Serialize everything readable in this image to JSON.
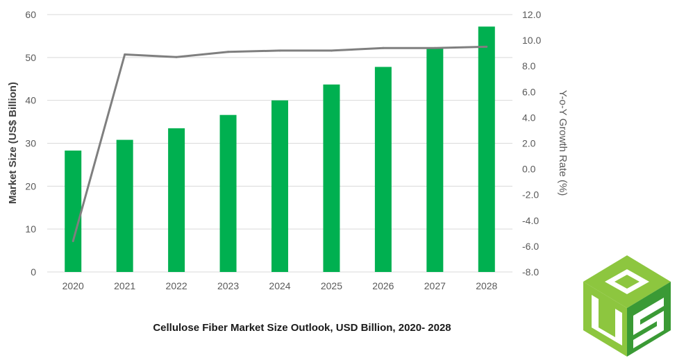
{
  "chart_data": {
    "type": "bar",
    "title": "",
    "caption": "Cellulose Fiber Market Size Outlook, USD Billion, 2020- 2028",
    "categories": [
      "2020",
      "2021",
      "2022",
      "2023",
      "2024",
      "2025",
      "2026",
      "2027",
      "2028"
    ],
    "series": [
      {
        "type": "bar",
        "axis": "left",
        "color": "#00B050",
        "values": [
          28.3,
          30.8,
          33.5,
          36.6,
          40.0,
          43.7,
          47.8,
          52.3,
          57.2
        ]
      },
      {
        "type": "line",
        "axis": "right",
        "color": "#7F7F7F",
        "values": [
          -5.6,
          8.9,
          8.7,
          9.1,
          9.2,
          9.2,
          9.4,
          9.4,
          9.5
        ]
      }
    ],
    "ylabel": "Market Size (US$ Billion)",
    "y2label": "Y-o-Y Growth Rate (%)",
    "ylim": [
      0,
      60
    ],
    "y2lim": [
      -8,
      12
    ],
    "yticks": [
      "0",
      "10",
      "20",
      "30",
      "40",
      "50",
      "60"
    ],
    "y2ticks": [
      "-8.0",
      "-6.0",
      "-4.0",
      "-2.0",
      "0.0",
      "2.0",
      "4.0",
      "6.0",
      "8.0",
      "10.0",
      "12.0"
    ],
    "grid": true,
    "legend": "none"
  },
  "logo": {
    "name": "us-cube-logo",
    "colors": {
      "light": "#8DC63F",
      "dark": "#3A9A35",
      "white": "#ffffff"
    }
  }
}
